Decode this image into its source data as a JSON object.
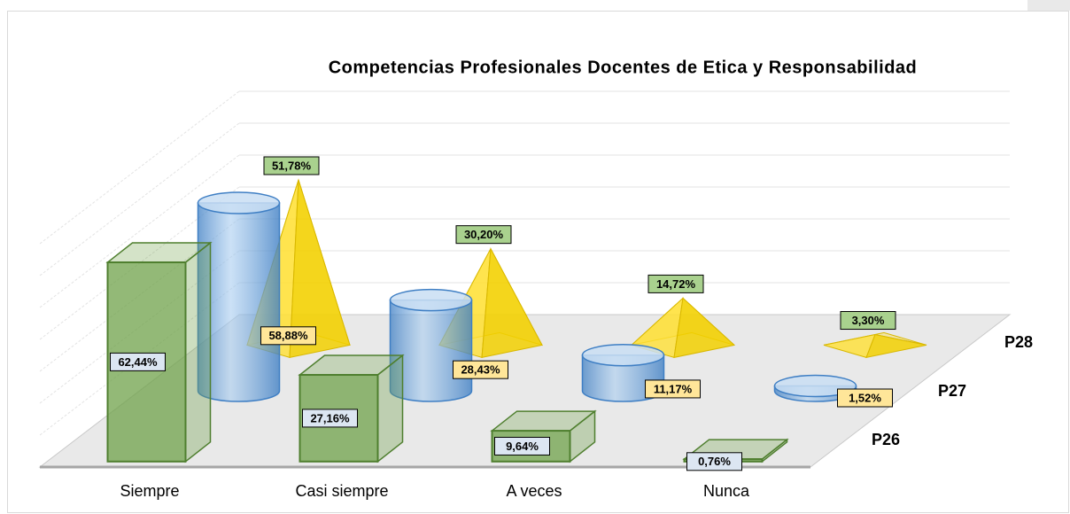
{
  "chart_data": {
    "type": "bar3d",
    "title": "Competencias Profesionales Docentes de Etica y Responsabilidad",
    "categories": [
      "Siempre",
      "Casi siempre",
      "A veces",
      "Nunca"
    ],
    "series": [
      {
        "name": "P26",
        "color": "#6fa14a",
        "shape": "box",
        "values": [
          62.44,
          27.16,
          9.64,
          0.76
        ],
        "value_labels": [
          "62,44%",
          "27,16%",
          "9,64%",
          "0,76%"
        ]
      },
      {
        "name": "P27",
        "color": "#5b9bd5",
        "shape": "cylinder",
        "values": [
          58.88,
          28.43,
          11.17,
          1.52
        ],
        "value_labels": [
          "58,88%",
          "28,43%",
          "11,17%",
          "1,52%"
        ]
      },
      {
        "name": "P28",
        "color": "#ffe033",
        "shape": "pyramid",
        "values": [
          51.78,
          30.2,
          14.72,
          3.3
        ],
        "value_labels": [
          "51,78%",
          "30,20%",
          "14,72%",
          "3,30%"
        ]
      }
    ],
    "ylim": [
      0,
      70
    ],
    "yticks": [
      0,
      10,
      20,
      30,
      40,
      50,
      60,
      70
    ],
    "grid": true
  }
}
